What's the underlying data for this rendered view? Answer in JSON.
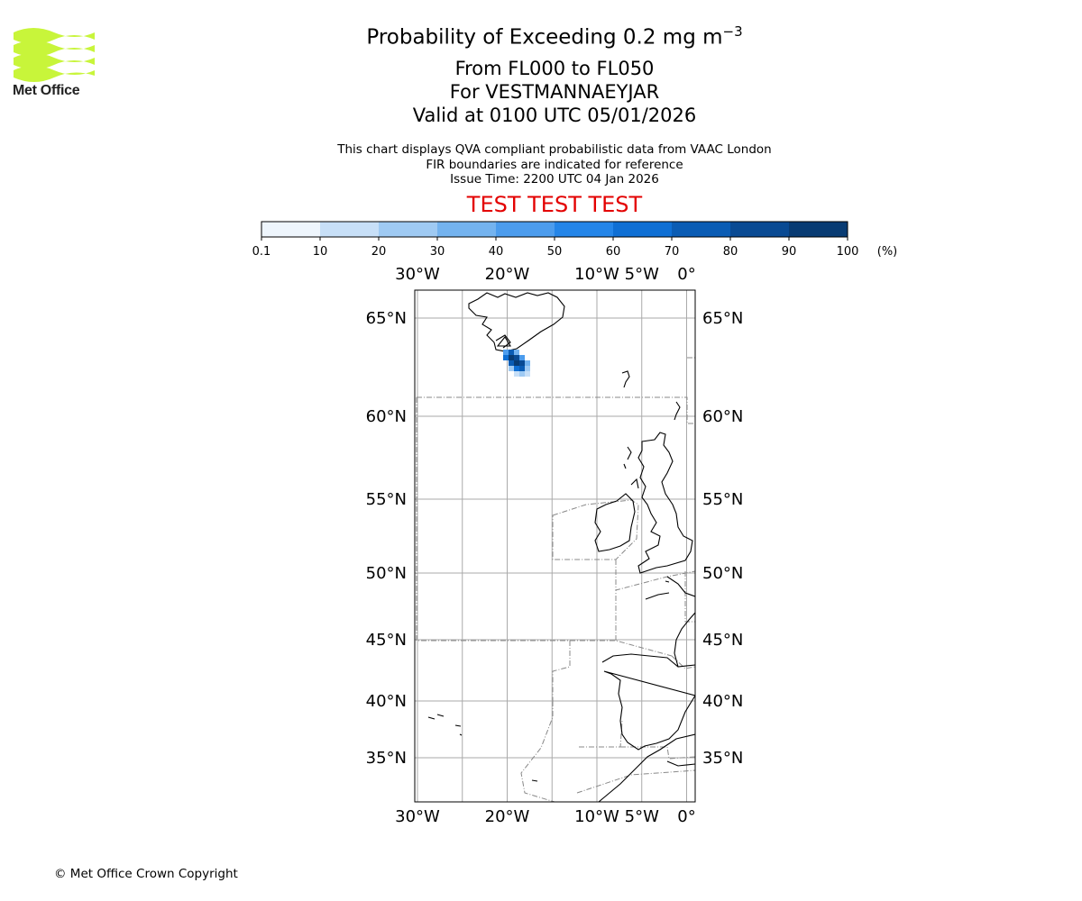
{
  "logo": {
    "text": "Met Office",
    "icon": "met-office-wave-icon",
    "color": "#c8f53a"
  },
  "title": {
    "main": "Probability of Exceeding 0.2 mg m",
    "main_sup": "−3",
    "line2": "From FL000 to FL050",
    "line3": "For VESTMANNAEYJAR",
    "line4": "Valid at 0100 UTC 05/01/2026"
  },
  "description": {
    "line1": "This chart displays QVA compliant probabilistic data from VAAC London",
    "line2": "FIR boundaries are indicated for reference",
    "line3": "Issue Time: 2200 UTC 04 Jan 2026"
  },
  "test_banner": {
    "text": "TEST TEST TEST",
    "color": "#e30000"
  },
  "colorbar": {
    "ticks": [
      "0.1",
      "10",
      "20",
      "30",
      "40",
      "50",
      "60",
      "70",
      "80",
      "90",
      "100"
    ],
    "unit": "(%)",
    "colors": [
      "#eef5fc",
      "#c7dff7",
      "#9fcaf3",
      "#74b3ef",
      "#4c9ced",
      "#2485e8",
      "#0f6fd4",
      "#0a5cb4",
      "#094a93",
      "#083b73",
      "#062c55"
    ]
  },
  "map": {
    "lon_ticks": [
      "30°W",
      "20°W",
      "10°W",
      "5°W",
      "0°"
    ],
    "lat_ticks": [
      "65°N",
      "60°N",
      "55°N",
      "50°N",
      "45°N",
      "40°N",
      "35°N"
    ],
    "gridline_color": "#aaaaaa",
    "fir_color": "#888888"
  },
  "chart_data": {
    "type": "heatmap",
    "title": "Probability of Exceeding 0.2 mg m−3",
    "variable": "probability (%)",
    "colorbar_range": [
      0.1,
      100
    ],
    "location": "VESTMANNAEYJAR",
    "lon_range": [
      -30,
      1
    ],
    "lat_range": [
      32,
      66.5
    ]
  },
  "footer": {
    "copyright": "© Met Office Crown Copyright"
  }
}
